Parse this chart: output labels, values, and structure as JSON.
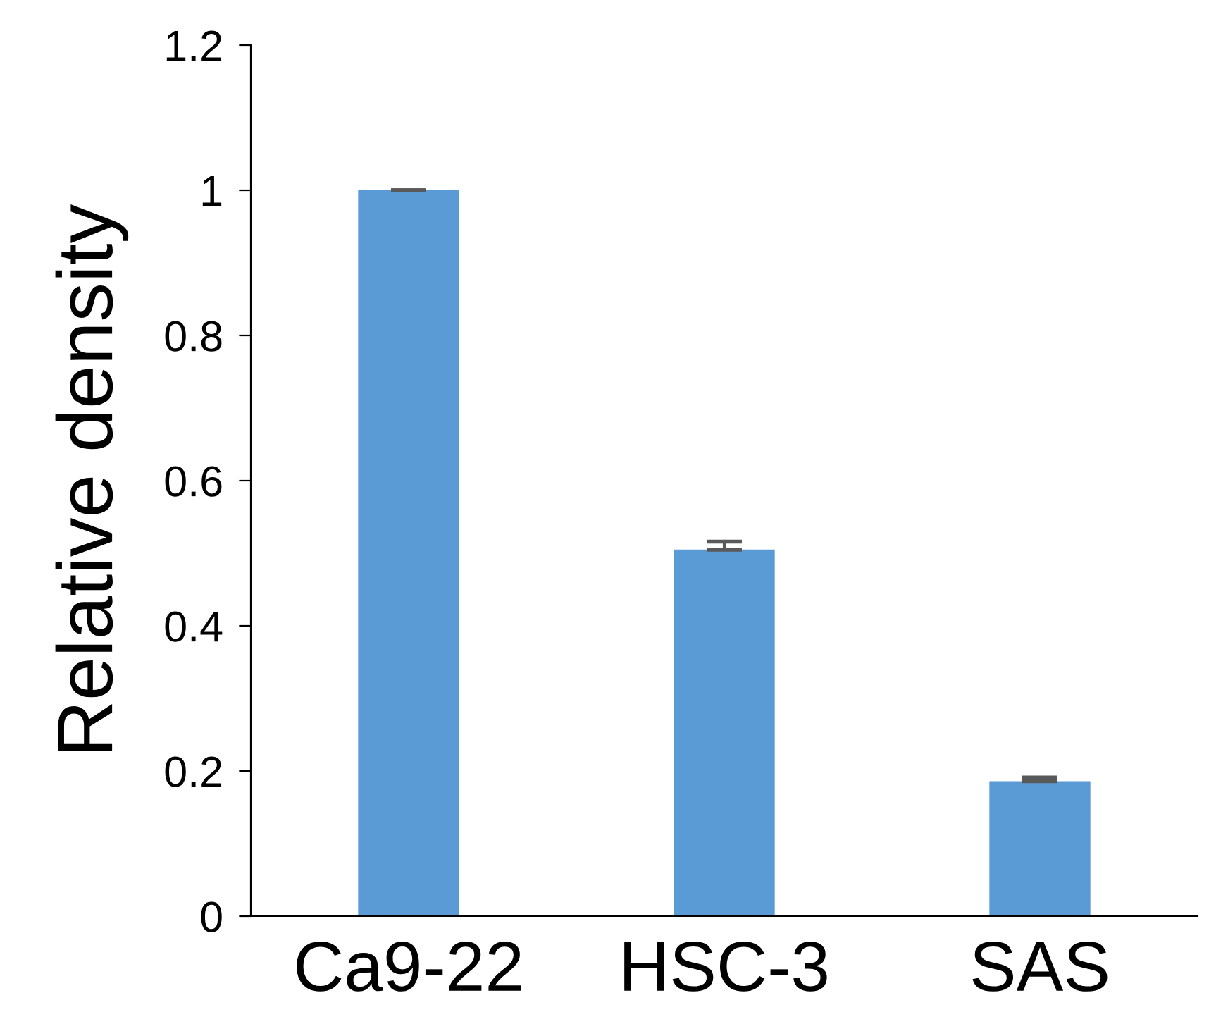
{
  "chart_data": {
    "type": "bar",
    "ylabel": "Relative density",
    "categories": [
      "Ca9-22",
      "HSC-3",
      "SAS"
    ],
    "values": [
      1.0,
      0.505,
      0.186
    ],
    "errors": [
      [
        1.0,
        1.0
      ],
      [
        0.505,
        0.516
      ],
      [
        0.186,
        0.191
      ]
    ],
    "color": "#5b9bd5",
    "ylim": [
      0,
      1.2
    ],
    "yticks": [
      0,
      0.2,
      0.4,
      0.6,
      0.8,
      1,
      1.2
    ],
    "grid": false
  }
}
